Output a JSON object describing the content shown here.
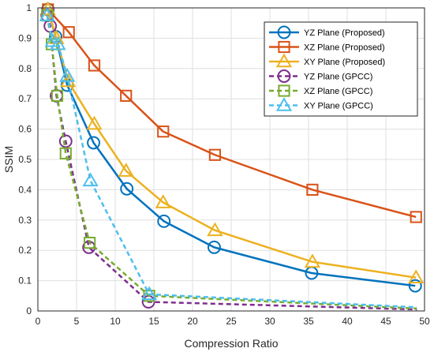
{
  "chart_data": {
    "type": "line",
    "title": "",
    "xlabel": "Compression Ratio",
    "ylabel": "SSIM",
    "xlim": [
      0,
      50
    ],
    "ylim": [
      0,
      1
    ],
    "xticks": [
      0,
      5,
      10,
      15,
      20,
      25,
      30,
      35,
      40,
      45,
      50
    ],
    "yticks": [
      0,
      0.1,
      0.2,
      0.3,
      0.4,
      0.5,
      0.6,
      0.7,
      0.8,
      0.9,
      1
    ],
    "grid": true,
    "legend_position": "top-right",
    "series": [
      {
        "name": "YZ Plane (Proposed)",
        "color": "#0072BD",
        "line": "solid",
        "marker": "circle",
        "x": [
          1.3,
          2.3,
          3.8,
          7.2,
          11.5,
          16.3,
          22.8,
          35.4,
          48.8
        ],
        "y": [
          0.995,
          0.905,
          0.745,
          0.555,
          0.403,
          0.296,
          0.21,
          0.125,
          0.083
        ]
      },
      {
        "name": "XZ Plane (Proposed)",
        "color": "#D95319",
        "line": "solid",
        "marker": "square",
        "x": [
          1.3,
          4.0,
          7.3,
          11.4,
          16.2,
          22.9,
          35.5,
          48.9
        ],
        "y": [
          0.995,
          0.92,
          0.81,
          0.71,
          0.592,
          0.515,
          0.4,
          0.31
        ]
      },
      {
        "name": "XY Plane (Proposed)",
        "color": "#EDB120",
        "line": "solid",
        "marker": "triangle",
        "x": [
          1.3,
          2.4,
          3.9,
          7.3,
          11.4,
          16.2,
          22.9,
          35.5,
          48.9
        ],
        "y": [
          0.995,
          0.9,
          0.758,
          0.617,
          0.462,
          0.358,
          0.266,
          0.162,
          0.11
        ]
      },
      {
        "name": "YZ Plane (GPCC)",
        "color": "#7E2F8E",
        "line": "dashed",
        "marker": "circle",
        "x": [
          1.2,
          1.6,
          2.4,
          3.6,
          6.6,
          14.3,
          49
        ],
        "y": [
          0.975,
          0.94,
          0.71,
          0.56,
          0.21,
          0.03,
          0.005
        ]
      },
      {
        "name": "XZ Plane (GPCC)",
        "color": "#77AC30",
        "line": "dashed",
        "marker": "square",
        "x": [
          1.2,
          1.8,
          2.5,
          3.6,
          6.7,
          14.4,
          49
        ],
        "y": [
          0.975,
          0.88,
          0.71,
          0.52,
          0.225,
          0.05,
          0.008
        ]
      },
      {
        "name": "XY Plane (GPCC)",
        "color": "#4DBEEE",
        "line": "dashed",
        "marker": "triangle",
        "x": [
          1.2,
          1.9,
          2.6,
          3.8,
          6.8,
          14.4,
          49
        ],
        "y": [
          0.975,
          0.89,
          0.88,
          0.775,
          0.43,
          0.055,
          0.012
        ]
      }
    ]
  }
}
